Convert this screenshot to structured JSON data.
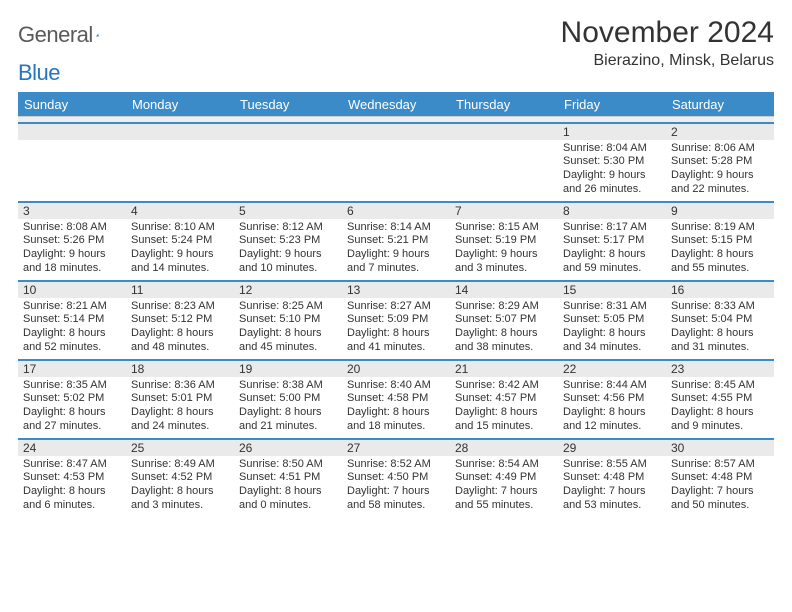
{
  "logo": {
    "text1": "General",
    "text2": "Blue"
  },
  "title": "November 2024",
  "location": "Bierazino, Minsk, Belarus",
  "colors": {
    "header_bg": "#3b8bc9",
    "header_text": "#ffffff",
    "week_border": "#3b8bc9",
    "daynum_bg": "#eaeaea",
    "text": "#333333",
    "logo_gray": "#5a5a5a",
    "logo_blue": "#2676c0"
  },
  "dayHeaders": [
    "Sunday",
    "Monday",
    "Tuesday",
    "Wednesday",
    "Thursday",
    "Friday",
    "Saturday"
  ],
  "weeks": [
    [
      {
        "num": "",
        "sunrise": "",
        "sunset": "",
        "daylight": ""
      },
      {
        "num": "",
        "sunrise": "",
        "sunset": "",
        "daylight": ""
      },
      {
        "num": "",
        "sunrise": "",
        "sunset": "",
        "daylight": ""
      },
      {
        "num": "",
        "sunrise": "",
        "sunset": "",
        "daylight": ""
      },
      {
        "num": "",
        "sunrise": "",
        "sunset": "",
        "daylight": ""
      },
      {
        "num": "1",
        "sunrise": "Sunrise: 8:04 AM",
        "sunset": "Sunset: 5:30 PM",
        "daylight": "Daylight: 9 hours and 26 minutes."
      },
      {
        "num": "2",
        "sunrise": "Sunrise: 8:06 AM",
        "sunset": "Sunset: 5:28 PM",
        "daylight": "Daylight: 9 hours and 22 minutes."
      }
    ],
    [
      {
        "num": "3",
        "sunrise": "Sunrise: 8:08 AM",
        "sunset": "Sunset: 5:26 PM",
        "daylight": "Daylight: 9 hours and 18 minutes."
      },
      {
        "num": "4",
        "sunrise": "Sunrise: 8:10 AM",
        "sunset": "Sunset: 5:24 PM",
        "daylight": "Daylight: 9 hours and 14 minutes."
      },
      {
        "num": "5",
        "sunrise": "Sunrise: 8:12 AM",
        "sunset": "Sunset: 5:23 PM",
        "daylight": "Daylight: 9 hours and 10 minutes."
      },
      {
        "num": "6",
        "sunrise": "Sunrise: 8:14 AM",
        "sunset": "Sunset: 5:21 PM",
        "daylight": "Daylight: 9 hours and 7 minutes."
      },
      {
        "num": "7",
        "sunrise": "Sunrise: 8:15 AM",
        "sunset": "Sunset: 5:19 PM",
        "daylight": "Daylight: 9 hours and 3 minutes."
      },
      {
        "num": "8",
        "sunrise": "Sunrise: 8:17 AM",
        "sunset": "Sunset: 5:17 PM",
        "daylight": "Daylight: 8 hours and 59 minutes."
      },
      {
        "num": "9",
        "sunrise": "Sunrise: 8:19 AM",
        "sunset": "Sunset: 5:15 PM",
        "daylight": "Daylight: 8 hours and 55 minutes."
      }
    ],
    [
      {
        "num": "10",
        "sunrise": "Sunrise: 8:21 AM",
        "sunset": "Sunset: 5:14 PM",
        "daylight": "Daylight: 8 hours and 52 minutes."
      },
      {
        "num": "11",
        "sunrise": "Sunrise: 8:23 AM",
        "sunset": "Sunset: 5:12 PM",
        "daylight": "Daylight: 8 hours and 48 minutes."
      },
      {
        "num": "12",
        "sunrise": "Sunrise: 8:25 AM",
        "sunset": "Sunset: 5:10 PM",
        "daylight": "Daylight: 8 hours and 45 minutes."
      },
      {
        "num": "13",
        "sunrise": "Sunrise: 8:27 AM",
        "sunset": "Sunset: 5:09 PM",
        "daylight": "Daylight: 8 hours and 41 minutes."
      },
      {
        "num": "14",
        "sunrise": "Sunrise: 8:29 AM",
        "sunset": "Sunset: 5:07 PM",
        "daylight": "Daylight: 8 hours and 38 minutes."
      },
      {
        "num": "15",
        "sunrise": "Sunrise: 8:31 AM",
        "sunset": "Sunset: 5:05 PM",
        "daylight": "Daylight: 8 hours and 34 minutes."
      },
      {
        "num": "16",
        "sunrise": "Sunrise: 8:33 AM",
        "sunset": "Sunset: 5:04 PM",
        "daylight": "Daylight: 8 hours and 31 minutes."
      }
    ],
    [
      {
        "num": "17",
        "sunrise": "Sunrise: 8:35 AM",
        "sunset": "Sunset: 5:02 PM",
        "daylight": "Daylight: 8 hours and 27 minutes."
      },
      {
        "num": "18",
        "sunrise": "Sunrise: 8:36 AM",
        "sunset": "Sunset: 5:01 PM",
        "daylight": "Daylight: 8 hours and 24 minutes."
      },
      {
        "num": "19",
        "sunrise": "Sunrise: 8:38 AM",
        "sunset": "Sunset: 5:00 PM",
        "daylight": "Daylight: 8 hours and 21 minutes."
      },
      {
        "num": "20",
        "sunrise": "Sunrise: 8:40 AM",
        "sunset": "Sunset: 4:58 PM",
        "daylight": "Daylight: 8 hours and 18 minutes."
      },
      {
        "num": "21",
        "sunrise": "Sunrise: 8:42 AM",
        "sunset": "Sunset: 4:57 PM",
        "daylight": "Daylight: 8 hours and 15 minutes."
      },
      {
        "num": "22",
        "sunrise": "Sunrise: 8:44 AM",
        "sunset": "Sunset: 4:56 PM",
        "daylight": "Daylight: 8 hours and 12 minutes."
      },
      {
        "num": "23",
        "sunrise": "Sunrise: 8:45 AM",
        "sunset": "Sunset: 4:55 PM",
        "daylight": "Daylight: 8 hours and 9 minutes."
      }
    ],
    [
      {
        "num": "24",
        "sunrise": "Sunrise: 8:47 AM",
        "sunset": "Sunset: 4:53 PM",
        "daylight": "Daylight: 8 hours and 6 minutes."
      },
      {
        "num": "25",
        "sunrise": "Sunrise: 8:49 AM",
        "sunset": "Sunset: 4:52 PM",
        "daylight": "Daylight: 8 hours and 3 minutes."
      },
      {
        "num": "26",
        "sunrise": "Sunrise: 8:50 AM",
        "sunset": "Sunset: 4:51 PM",
        "daylight": "Daylight: 8 hours and 0 minutes."
      },
      {
        "num": "27",
        "sunrise": "Sunrise: 8:52 AM",
        "sunset": "Sunset: 4:50 PM",
        "daylight": "Daylight: 7 hours and 58 minutes."
      },
      {
        "num": "28",
        "sunrise": "Sunrise: 8:54 AM",
        "sunset": "Sunset: 4:49 PM",
        "daylight": "Daylight: 7 hours and 55 minutes."
      },
      {
        "num": "29",
        "sunrise": "Sunrise: 8:55 AM",
        "sunset": "Sunset: 4:48 PM",
        "daylight": "Daylight: 7 hours and 53 minutes."
      },
      {
        "num": "30",
        "sunrise": "Sunrise: 8:57 AM",
        "sunset": "Sunset: 4:48 PM",
        "daylight": "Daylight: 7 hours and 50 minutes."
      }
    ]
  ]
}
